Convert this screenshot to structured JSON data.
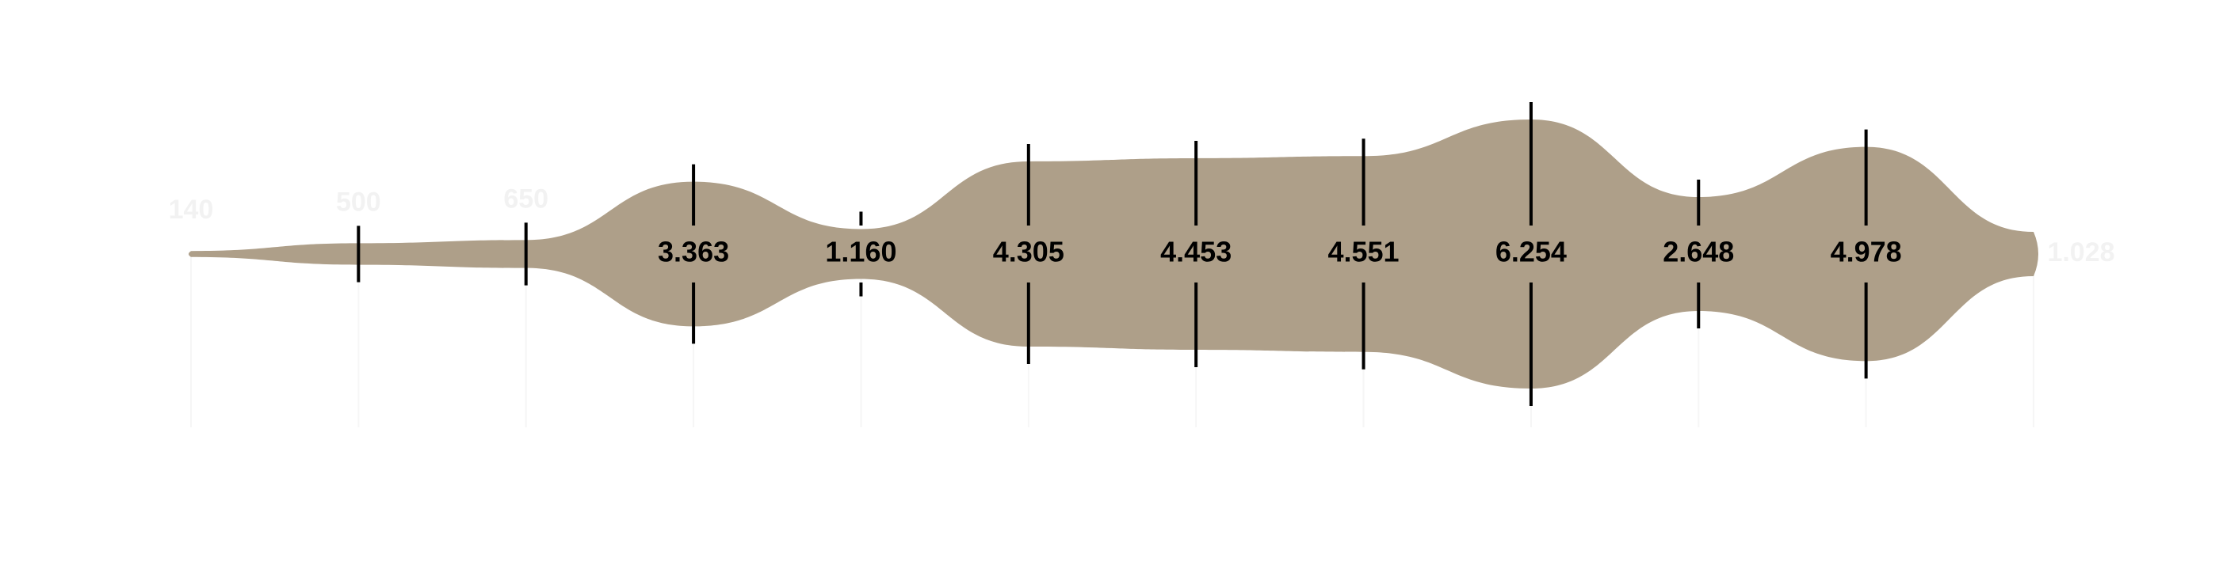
{
  "chart_data": {
    "type": "stream",
    "values": [
      140,
      500,
      650,
      3363,
      1160,
      4305,
      4453,
      4551,
      6254,
      2648,
      4978,
      1028
    ],
    "value_labels": [
      "140",
      "500",
      "650",
      "3.363",
      "1.160",
      "4.305",
      "4.453",
      "4.551",
      "6.254",
      "2.648",
      "4.978",
      "1.028"
    ],
    "color": "#ae9f89"
  }
}
